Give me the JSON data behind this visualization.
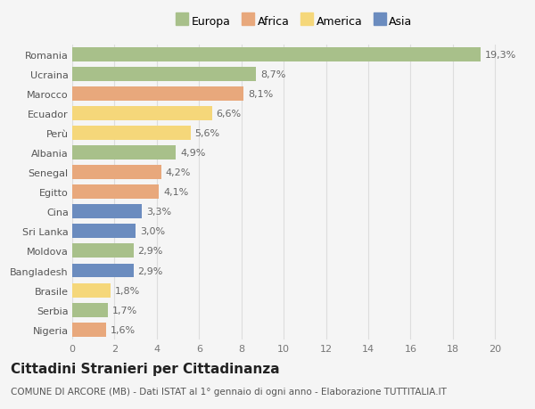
{
  "categories": [
    "Nigeria",
    "Serbia",
    "Brasile",
    "Bangladesh",
    "Moldova",
    "Sri Lanka",
    "Cina",
    "Egitto",
    "Senegal",
    "Albania",
    "Perù",
    "Ecuador",
    "Marocco",
    "Ucraina",
    "Romania"
  ],
  "values": [
    1.6,
    1.7,
    1.8,
    2.9,
    2.9,
    3.0,
    3.3,
    4.1,
    4.2,
    4.9,
    5.6,
    6.6,
    8.1,
    8.7,
    19.3
  ],
  "labels": [
    "1,6%",
    "1,7%",
    "1,8%",
    "2,9%",
    "2,9%",
    "3,0%",
    "3,3%",
    "4,1%",
    "4,2%",
    "4,9%",
    "5,6%",
    "6,6%",
    "8,1%",
    "8,7%",
    "19,3%"
  ],
  "colors": [
    "#e8a87c",
    "#a8c08a",
    "#f5d77a",
    "#6b8cbf",
    "#a8c08a",
    "#6b8cbf",
    "#6b8cbf",
    "#e8a87c",
    "#e8a87c",
    "#a8c08a",
    "#f5d77a",
    "#f5d77a",
    "#e8a87c",
    "#a8c08a",
    "#a8c08a"
  ],
  "legend_labels": [
    "Europa",
    "Africa",
    "America",
    "Asia"
  ],
  "legend_colors": [
    "#a8c08a",
    "#e8a87c",
    "#f5d77a",
    "#6b8cbf"
  ],
  "title": "Cittadini Stranieri per Cittadinanza",
  "subtitle": "COMUNE DI ARCORE (MB) - Dati ISTAT al 1° gennaio di ogni anno - Elaborazione TUTTITALIA.IT",
  "xlim": [
    0,
    21
  ],
  "xticks": [
    0,
    2,
    4,
    6,
    8,
    10,
    12,
    14,
    16,
    18,
    20
  ],
  "background_color": "#f5f5f5",
  "grid_color": "#dddddd",
  "bar_height": 0.72,
  "label_fontsize": 8,
  "tick_fontsize": 8,
  "title_fontsize": 11,
  "subtitle_fontsize": 7.5
}
